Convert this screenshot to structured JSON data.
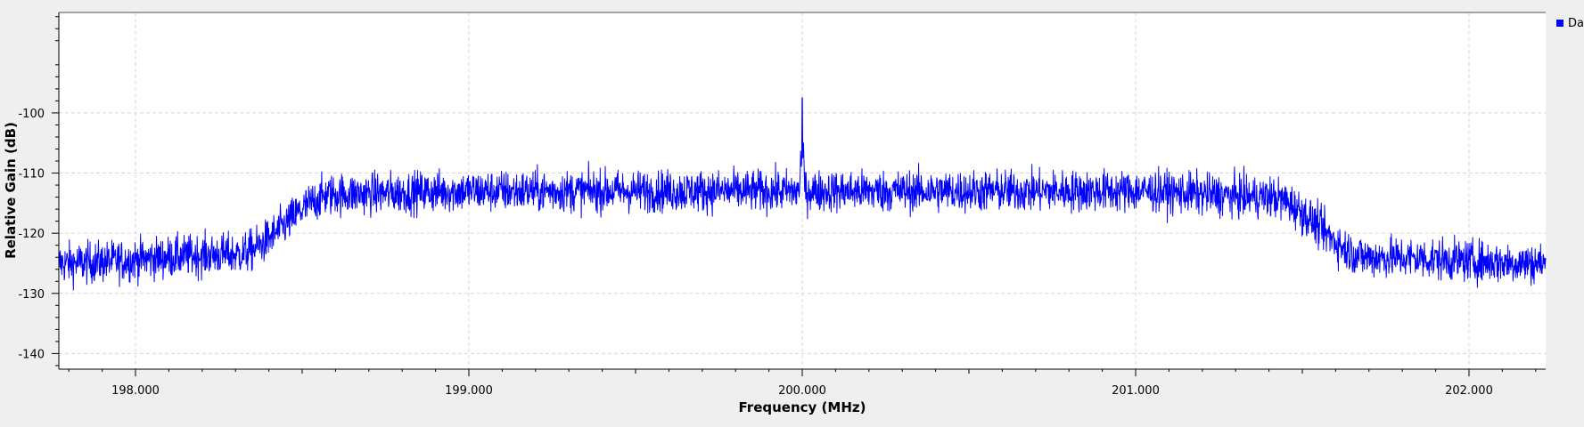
{
  "chart_data": {
    "type": "line",
    "title": "",
    "xlabel": "Frequency (MHz)",
    "ylabel": "Relative Gain (dB)",
    "xlim": [
      197.77,
      202.23
    ],
    "ylim": [
      -142.6,
      -83.3
    ],
    "x_ticks": [
      198.0,
      199.0,
      200.0,
      201.0,
      202.0
    ],
    "x_tick_labels": [
      "198.000",
      "199.000",
      "200.000",
      "201.000",
      "202.000"
    ],
    "y_ticks": [
      -100,
      -110,
      -120,
      -130,
      -140
    ],
    "y_tick_labels": [
      "-100",
      "-110",
      "-120",
      "-130",
      "-140"
    ],
    "grid": true,
    "legend": {
      "placement": "top-right",
      "entries": [
        {
          "label": "Da",
          "color": "#0000ff"
        }
      ]
    },
    "series": [
      {
        "color": "#0000ff",
        "profile": {
          "x": [
            197.77,
            198.3,
            198.6,
            199.0,
            200.0,
            201.0,
            201.4,
            201.7,
            202.23
          ],
          "y": [
            -125,
            -123.5,
            -113.5,
            -113,
            -113,
            -113,
            -114,
            -124,
            -125
          ]
        },
        "noise_db": 2.4,
        "samples": 4096,
        "peaks": [
          {
            "x": 200.0,
            "y": -97.5
          }
        ]
      }
    ]
  }
}
